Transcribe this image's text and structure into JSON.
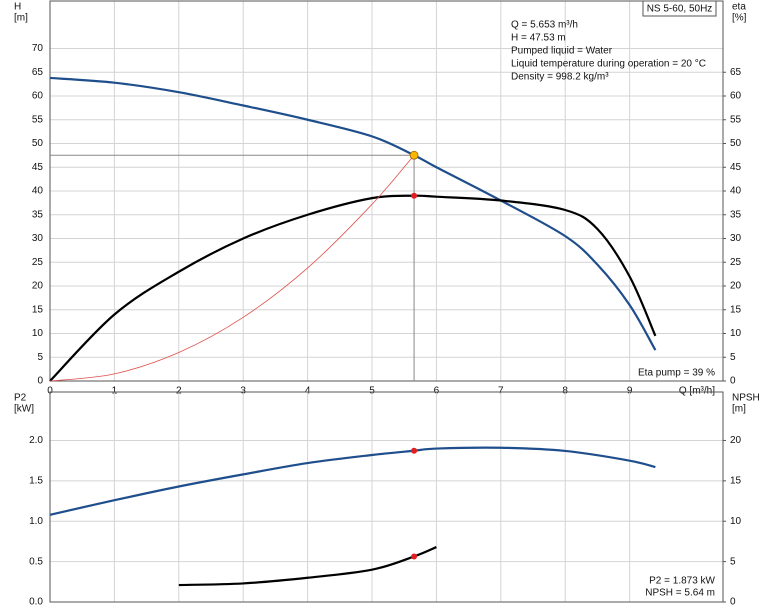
{
  "chart_data": [
    {
      "type": "line",
      "title": "NS 5-60, 50Hz",
      "y_label": [
        "H",
        "[m]"
      ],
      "y2_label": [
        "eta",
        "[%]"
      ],
      "x_label": "Q [m³/h]",
      "annotations": [
        "Q = 5.653 m³/h",
        "H = 47.53 m",
        "Pumped liquid = Water",
        "Liquid temperature during operation = 20 °C",
        "Density = 998.2 kg/m³"
      ],
      "result": "Eta pump = 39 %",
      "xlim": [
        0,
        10.45
      ],
      "xticks": [
        0,
        1,
        2,
        3,
        4,
        5,
        6,
        7,
        8,
        9
      ],
      "ylim": [
        0,
        80
      ],
      "yticks": [
        0,
        5,
        10,
        15,
        20,
        25,
        30,
        35,
        40,
        45,
        50,
        55,
        60,
        65,
        70
      ],
      "y2lim": [
        0,
        80
      ],
      "y2ticks": [
        0,
        5,
        10,
        15,
        20,
        25,
        30,
        35,
        40,
        45,
        50,
        55,
        60,
        65
      ],
      "grid": true,
      "series": [
        {
          "color": "#1f4e8c",
          "width": 2.2,
          "x": [
            0,
            1,
            2,
            3,
            4,
            5,
            5.653,
            6,
            7,
            8,
            8.5,
            9,
            9.4
          ],
          "values": [
            63.8,
            62.8,
            60.8,
            58,
            55,
            51.5,
            47.53,
            45,
            38,
            30.5,
            24.5,
            16,
            6.5
          ]
        },
        {
          "color": "#000000",
          "width": 2.2,
          "axis": "y2",
          "x": [
            0,
            1,
            2,
            3,
            4,
            5,
            5.653,
            6,
            7,
            8,
            8.5,
            9,
            9.4
          ],
          "values": [
            0,
            14,
            23,
            30,
            35,
            38.5,
            39,
            38.8,
            38,
            36,
            32,
            22,
            9.5
          ]
        },
        {
          "color": "#e0504a",
          "width": 0.8,
          "x": [
            0,
            1,
            2,
            3,
            4,
            5,
            5.653
          ],
          "values": [
            0,
            1.5,
            6,
            13.4,
            23.8,
            37.2,
            47.53
          ]
        }
      ],
      "points": [
        {
          "x": 5.653,
          "y": 47.53,
          "color": "#f5b800",
          "crosshair": true
        },
        {
          "x": 5.653,
          "y": 39,
          "color": "#e02020",
          "axis": "y2"
        }
      ]
    },
    {
      "type": "line",
      "y_label": [
        "P2",
        "[kW]"
      ],
      "y2_label": [
        "NPSH",
        "[m]"
      ],
      "result": [
        "P2 = 1.873 kW",
        "NPSH = 5.64 m"
      ],
      "xlim": [
        0,
        10.45
      ],
      "xticks": [
        0,
        1,
        2,
        3,
        4,
        5,
        6,
        7,
        8,
        9
      ],
      "show_xtick_labels": false,
      "ylim": [
        0,
        2.6
      ],
      "yticks": [
        {
          "value": 0,
          "label": "0.0"
        },
        0.5,
        {
          "value": 1,
          "label": "1.0"
        },
        1.5,
        {
          "value": 2,
          "label": "2.0"
        }
      ],
      "y2lim": [
        0,
        26
      ],
      "y2ticks": [
        0,
        5,
        10,
        15,
        20
      ],
      "grid": true,
      "series": [
        {
          "color": "#1f4e8c",
          "width": 2.2,
          "x": [
            0,
            1,
            2,
            3,
            4,
            5,
            5.653,
            6,
            7,
            8,
            9,
            9.4
          ],
          "values": [
            1.08,
            1.26,
            1.43,
            1.58,
            1.72,
            1.82,
            1.873,
            1.9,
            1.91,
            1.87,
            1.75,
            1.67
          ]
        },
        {
          "color": "#000000",
          "width": 2.2,
          "axis": "y2",
          "x": [
            2,
            3,
            4,
            5,
            5.653,
            6
          ],
          "values": [
            2.1,
            2.3,
            3,
            4,
            5.64,
            6.8
          ]
        }
      ],
      "points": [
        {
          "x": 5.653,
          "y": 1.873,
          "color": "#e02020"
        },
        {
          "x": 5.653,
          "y": 5.64,
          "color": "#e02020",
          "axis": "y2"
        }
      ]
    }
  ]
}
